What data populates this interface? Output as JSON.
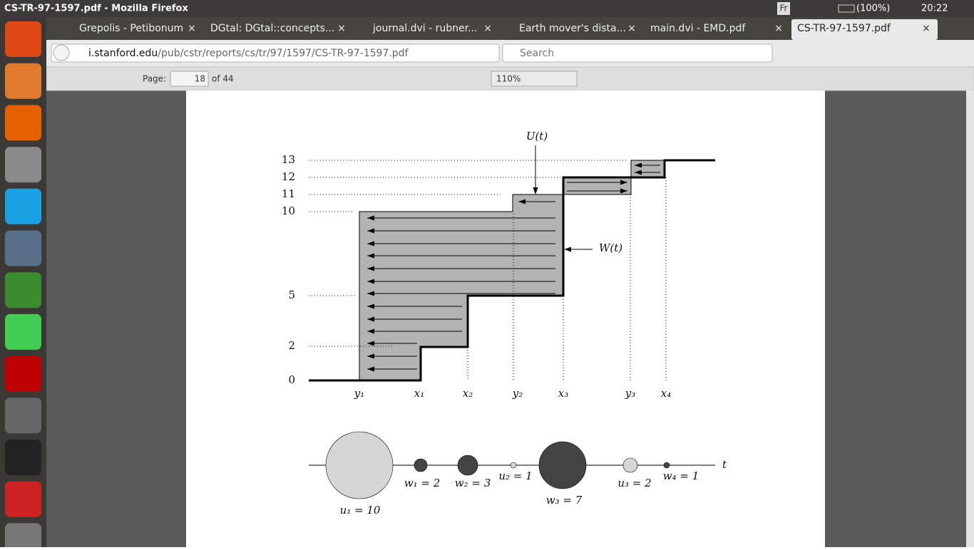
{
  "window": {
    "title": "CS-TR-97-1597.pdf - Mozilla Firefox"
  },
  "tray": {
    "keyboard": "Fr",
    "battery": "(100%)",
    "time": "20:22"
  },
  "tabs": [
    "Grepolis - Petibonum",
    "DGtal: DGtal::concepts...",
    "journal.dvi - rubner...",
    "Earth mover's dista...",
    "main.dvi - EMD.pdf",
    "CS-TR-97-1597.pdf"
  ],
  "address": {
    "host": "i.stanford.edu",
    "path": "/pub/cstr/reports/cs/tr/97/1597/CS-TR-97-1597.pdf"
  },
  "search": {
    "placeholder": "Search"
  },
  "pdf_toolbar": {
    "page_label": "Page:",
    "page": "18",
    "page_count": "of 44",
    "zoom": "110%"
  },
  "figure": {
    "y_labels": [
      13,
      12,
      11,
      10,
      5,
      2,
      0
    ],
    "x_labels": [
      "y₁",
      "x₁",
      "x₂",
      "y₂",
      "x₃",
      "y₃",
      "x₄"
    ],
    "curve_labels": {
      "U": "U(t)",
      "W": "W(t)"
    },
    "axis_label": "t",
    "weight_labels": [
      "u₁ = 10",
      "w₁ = 2",
      "w₂ = 3",
      "u₂ = 1",
      "w₃ = 7",
      "u₃ = 2",
      "w₄ = 1"
    ]
  }
}
